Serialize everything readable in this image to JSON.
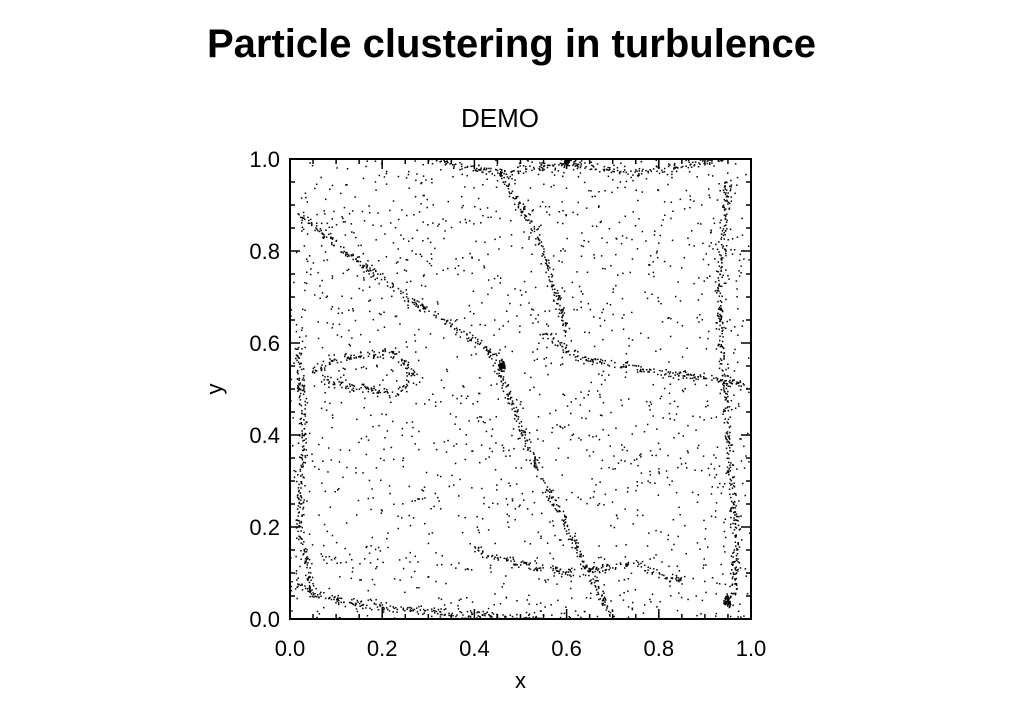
{
  "slide": {
    "title": "Particle clustering in turbulence",
    "subtitle": "DEMO"
  },
  "chart_data": {
    "type": "scatter",
    "title": "",
    "xlabel": "x",
    "ylabel": "y",
    "xlim": [
      0.0,
      1.0
    ],
    "ylim": [
      0.0,
      1.0
    ],
    "xticks": [
      "0.0",
      "0.2",
      "0.4",
      "0.6",
      "0.8",
      "1.0"
    ],
    "yticks": [
      "0.0",
      "0.2",
      "0.4",
      "0.6",
      "0.8",
      "1.0"
    ],
    "grid": false,
    "legend": "none",
    "point_color": "#000000",
    "structures": [
      {
        "name": "bottom-filament",
        "points": [
          [
            0.0,
            0.08
          ],
          [
            0.1,
            0.04
          ],
          [
            0.25,
            0.02
          ],
          [
            0.4,
            0.01
          ],
          [
            0.55,
            0.0
          ]
        ]
      },
      {
        "name": "right-filament",
        "points": [
          [
            0.55,
            0.62
          ],
          [
            0.62,
            0.57
          ],
          [
            0.72,
            0.55
          ],
          [
            0.85,
            0.53
          ],
          [
            1.0,
            0.51
          ]
        ]
      },
      {
        "name": "left-loop",
        "points": [
          [
            0.05,
            0.54
          ],
          [
            0.12,
            0.57
          ],
          [
            0.22,
            0.58
          ],
          [
            0.27,
            0.54
          ],
          [
            0.24,
            0.49
          ],
          [
            0.14,
            0.5
          ],
          [
            0.07,
            0.52
          ]
        ]
      },
      {
        "name": "upper-diagonal-band",
        "points": [
          [
            0.02,
            0.88
          ],
          [
            0.12,
            0.8
          ],
          [
            0.25,
            0.7
          ],
          [
            0.38,
            0.62
          ],
          [
            0.46,
            0.56
          ]
        ]
      },
      {
        "name": "central-diagonal-band",
        "points": [
          [
            0.45,
            0.55
          ],
          [
            0.5,
            0.42
          ],
          [
            0.55,
            0.3
          ],
          [
            0.6,
            0.2
          ],
          [
            0.66,
            0.08
          ],
          [
            0.7,
            0.0
          ]
        ]
      },
      {
        "name": "top-edge-band",
        "points": [
          [
            0.3,
            1.0
          ],
          [
            0.45,
            0.97
          ],
          [
            0.6,
            0.99
          ],
          [
            0.75,
            0.97
          ],
          [
            0.95,
            1.0
          ]
        ]
      },
      {
        "name": "right-edge-band",
        "points": [
          [
            0.95,
            0.95
          ],
          [
            0.93,
            0.7
          ],
          [
            0.95,
            0.4
          ],
          [
            0.97,
            0.15
          ],
          [
            0.96,
            0.03
          ]
        ]
      },
      {
        "name": "upper-right-streak",
        "points": [
          [
            0.45,
            0.98
          ],
          [
            0.5,
            0.9
          ],
          [
            0.55,
            0.8
          ],
          [
            0.58,
            0.7
          ],
          [
            0.6,
            0.62
          ]
        ]
      },
      {
        "name": "left-edge-band",
        "points": [
          [
            0.02,
            0.6
          ],
          [
            0.03,
            0.4
          ],
          [
            0.02,
            0.2
          ],
          [
            0.05,
            0.05
          ]
        ]
      },
      {
        "name": "lower-mid-arc",
        "points": [
          [
            0.4,
            0.15
          ],
          [
            0.5,
            0.12
          ],
          [
            0.6,
            0.1
          ],
          [
            0.75,
            0.12
          ],
          [
            0.85,
            0.08
          ]
        ]
      }
    ],
    "clusters": [
      [
        0.46,
        0.55
      ],
      [
        0.95,
        0.04
      ],
      [
        0.6,
        1.0
      ]
    ],
    "background_density": "uniform sparse"
  }
}
